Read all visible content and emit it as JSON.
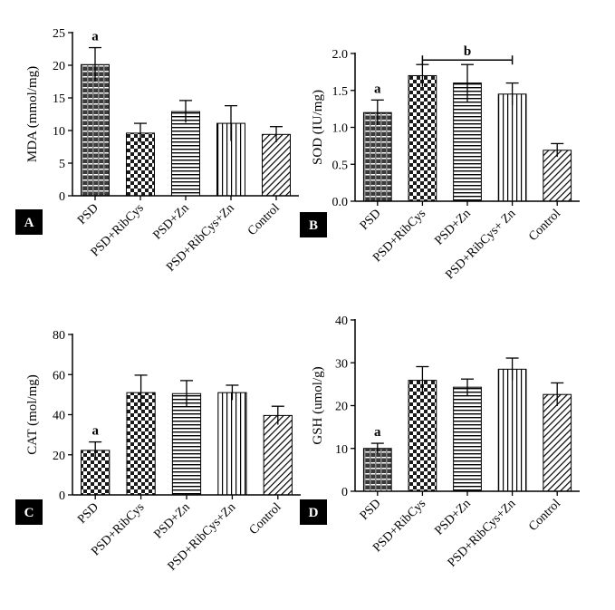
{
  "chart_data": [
    {
      "type": "bar",
      "panel_label": "A",
      "ylabel": "MDA (mmol/mg)",
      "categories": [
        "PSD",
        "PSD+RibCys",
        "PSD+Zn",
        "PSD+RibCys+Zn",
        "Control"
      ],
      "values": [
        20.1,
        9.6,
        12.9,
        11.1,
        9.4
      ],
      "errors": [
        2.6,
        1.5,
        1.7,
        2.7,
        1.2
      ],
      "ylim": [
        0,
        25
      ],
      "yticks": [
        0,
        5,
        10,
        15,
        20,
        25
      ],
      "ytick_labels": [
        "0",
        "5",
        "10",
        "15",
        "20",
        "25"
      ],
      "annotations": [
        {
          "text": "a",
          "bars": [
            0
          ]
        }
      ]
    },
    {
      "type": "bar",
      "panel_label": "B",
      "ylabel": "SOD (IU/mg)",
      "categories": [
        "PSD",
        "PSD+RibCys",
        "PSD+Zn",
        "PSD+RibCys+ Zn",
        "Control"
      ],
      "values": [
        1.2,
        1.7,
        1.6,
        1.45,
        0.69
      ],
      "errors": [
        0.17,
        0.15,
        0.25,
        0.15,
        0.09
      ],
      "ylim": [
        0,
        2.0
      ],
      "yticks": [
        0,
        0.5,
        1.0,
        1.5,
        2.0
      ],
      "ytick_labels": [
        "0.0",
        "0.5",
        "1.0",
        "1.5",
        "2.0"
      ],
      "annotations": [
        {
          "text": "a",
          "bars": [
            0
          ]
        },
        {
          "text": "b",
          "bars": [
            1,
            3
          ],
          "bracket": true
        }
      ]
    },
    {
      "type": "bar",
      "panel_label": "C",
      "ylabel": "CAT (mol/mg)",
      "categories": [
        "PSD",
        "PSD+RibCys",
        "PSD+Zn",
        "PSD+RibCys+Zn",
        "Control"
      ],
      "values": [
        22.2,
        51.0,
        50.5,
        51.0,
        39.6
      ],
      "errors": [
        4.2,
        8.7,
        6.5,
        3.7,
        4.6
      ],
      "ylim": [
        0,
        80
      ],
      "yticks": [
        0,
        20,
        40,
        60,
        80
      ],
      "ytick_labels": [
        "0",
        "20",
        "40",
        "60",
        "80"
      ],
      "annotations": [
        {
          "text": "a",
          "bars": [
            0
          ]
        }
      ]
    },
    {
      "type": "bar",
      "panel_label": "D",
      "ylabel": "GSH (umol/g)",
      "categories": [
        "PSD",
        "PSD+RibCys",
        "PSD+Zn",
        "PSD+RibCys+Zn",
        "Control"
      ],
      "values": [
        10.0,
        25.9,
        24.3,
        28.5,
        22.6
      ],
      "errors": [
        1.2,
        3.2,
        1.9,
        2.6,
        2.7
      ],
      "ylim": [
        0,
        40
      ],
      "yticks": [
        0,
        10,
        20,
        30,
        40
      ],
      "ytick_labels": [
        "0",
        "10",
        "20",
        "30",
        "40"
      ],
      "annotations": [
        {
          "text": "a",
          "bars": [
            0
          ]
        }
      ]
    }
  ]
}
